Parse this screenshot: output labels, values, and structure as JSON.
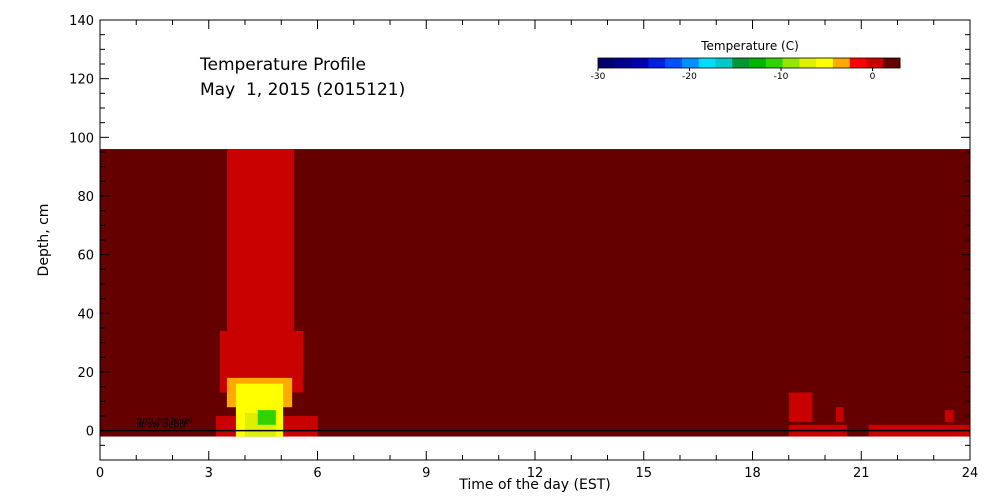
{
  "chart_data": {
    "type": "heatmap",
    "title_line1": "Temperature Profile",
    "title_line2": "May  1, 2015 (2015121)",
    "xlabel": "Time of the day (EST)",
    "ylabel": "Depth, cm",
    "xlim": [
      0,
      24
    ],
    "ylim": [
      -10,
      140
    ],
    "x_ticks": [
      0,
      3,
      6,
      9,
      12,
      15,
      18,
      21,
      24
    ],
    "y_ticks": [
      0,
      20,
      40,
      60,
      80,
      100,
      120,
      140
    ],
    "x_tick_labels": [
      "0",
      "3",
      "6",
      "9",
      "12",
      "15",
      "18",
      "21",
      "24"
    ],
    "y_tick_labels": [
      "0",
      "20",
      "40",
      "60",
      "80",
      "100",
      "120",
      "140"
    ],
    "data_extent": {
      "x": [
        0,
        24
      ],
      "depth": [
        -2,
        96
      ]
    },
    "background_temperature_c": 2,
    "colorbar": {
      "title": "Temperature (C)",
      "range": [
        -30,
        3
      ],
      "tick_values": [
        -30,
        -20,
        -10,
        0
      ],
      "tick_labels": [
        "-30",
        "-20",
        "-10",
        "0"
      ],
      "colors": [
        "#000070",
        "#000090",
        "#0000b0",
        "#0020e0",
        "#0050ff",
        "#0090ff",
        "#00dcff",
        "#00c8c8",
        "#009632",
        "#00b400",
        "#32d200",
        "#96e600",
        "#dcf000",
        "#ffff00",
        "#ffaa00",
        "#ff0000",
        "#c80000",
        "#640000"
      ]
    },
    "annotations": {
      "ground_level": "ground level",
      "snow_depth": "snow depth"
    },
    "patches": [
      {
        "x": [
          3.5,
          5.35
        ],
        "depth": [
          25,
          96
        ],
        "temperature_c": 0
      },
      {
        "x": [
          3.85,
          5.0
        ],
        "depth": [
          8,
          96
        ],
        "temperature_c": 0
      },
      {
        "x": [
          3.3,
          5.6
        ],
        "depth": [
          13,
          34
        ],
        "temperature_c": 0
      },
      {
        "x": [
          3.2,
          6.0
        ],
        "depth": [
          -2,
          5
        ],
        "temperature_c": 0
      },
      {
        "x": [
          3.5,
          5.3
        ],
        "depth": [
          8,
          18
        ],
        "temperature_c": -4
      },
      {
        "x": [
          3.75,
          5.05
        ],
        "depth": [
          -2,
          16
        ],
        "temperature_c": -5
      },
      {
        "x": [
          3.8,
          5.0
        ],
        "depth": [
          -2,
          13
        ],
        "temperature_c": -6
      },
      {
        "x": [
          4.0,
          4.85
        ],
        "depth": [
          -2,
          6
        ],
        "temperature_c": -8
      },
      {
        "x": [
          4.35,
          4.85
        ],
        "depth": [
          2,
          7
        ],
        "temperature_c": -10
      },
      {
        "x": [
          19.0,
          19.65
        ],
        "depth": [
          3,
          13
        ],
        "temperature_c": 0
      },
      {
        "x": [
          19.0,
          20.6
        ],
        "depth": [
          -2,
          2
        ],
        "temperature_c": 0
      },
      {
        "x": [
          20.3,
          20.5
        ],
        "depth": [
          3,
          8
        ],
        "temperature_c": 0
      },
      {
        "x": [
          21.2,
          24.0
        ],
        "depth": [
          -2,
          2
        ],
        "temperature_c": 0
      },
      {
        "x": [
          23.3,
          23.55
        ],
        "depth": [
          3,
          7
        ],
        "temperature_c": 0
      }
    ]
  }
}
